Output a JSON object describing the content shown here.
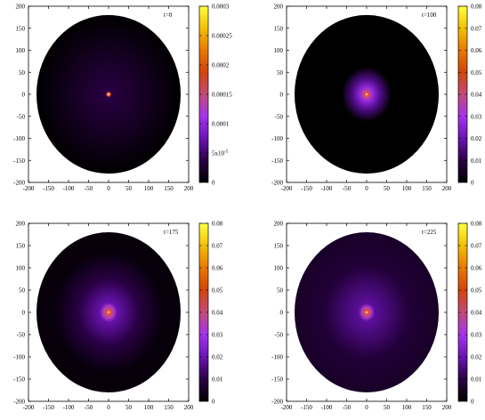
{
  "chart_data": [
    {
      "type": "heatmap",
      "annotation": "t=0",
      "xlim": [
        -200,
        200
      ],
      "ylim": [
        -200,
        200
      ],
      "x_ticks": [
        -200,
        -150,
        -100,
        -50,
        0,
        50,
        100,
        150,
        200
      ],
      "y_ticks": [
        -200,
        -150,
        -100,
        -50,
        0,
        50,
        100,
        150,
        200
      ],
      "domain": {
        "shape": "disk",
        "center": [
          0,
          0
        ],
        "radius": 180
      },
      "field": {
        "peak": [
          0,
          0
        ],
        "core_radius": 3,
        "halo_radius": 0,
        "halo_level": 0,
        "background_level": 0
      },
      "colorbar": {
        "range": [
          0,
          0.0003
        ],
        "ticks": [
          0,
          5e-05,
          0.0001,
          0.00015,
          0.0002,
          0.00025,
          0.0003
        ],
        "tick_labels": [
          "0",
          "5x10",
          "0.0001",
          "0.00015",
          "0.0002",
          "0.00025",
          "0.0003"
        ],
        "tick_exponents": [
          "",
          "-5",
          "",
          "",
          "",
          "",
          ""
        ]
      },
      "grid": false
    },
    {
      "type": "heatmap",
      "annotation": "t=100",
      "xlim": [
        -200,
        200
      ],
      "ylim": [
        -200,
        200
      ],
      "x_ticks": [
        -200,
        -150,
        -100,
        -50,
        0,
        50,
        100,
        150,
        200
      ],
      "y_ticks": [
        -200,
        -150,
        -100,
        -50,
        0,
        50,
        100,
        150,
        200
      ],
      "domain": {
        "shape": "disk",
        "center": [
          0,
          0
        ],
        "radius": 180
      },
      "field": {
        "peak": [
          0,
          0
        ],
        "core_radius": 18,
        "halo_radius": 62,
        "halo_level": 0.2,
        "background_level": 0
      },
      "colorbar": {
        "range": [
          0,
          0.08
        ],
        "ticks": [
          0,
          0.01,
          0.02,
          0.03,
          0.04,
          0.05,
          0.06,
          0.07,
          0.08
        ],
        "tick_labels": [
          "0",
          "0.01",
          "0.02",
          "0.03",
          "0.04",
          "0.05",
          "0.06",
          "0.07",
          "0.08"
        ],
        "tick_exponents": [
          "",
          "",
          "",
          "",
          "",
          "",
          "",
          "",
          ""
        ]
      },
      "grid": false
    },
    {
      "type": "heatmap",
      "annotation": "t=175",
      "xlim": [
        -200,
        200
      ],
      "ylim": [
        -200,
        200
      ],
      "x_ticks": [
        -200,
        -150,
        -100,
        -50,
        0,
        50,
        100,
        150,
        200
      ],
      "y_ticks": [
        -200,
        -150,
        -100,
        -50,
        0,
        50,
        100,
        150,
        200
      ],
      "domain": {
        "shape": "disk",
        "center": [
          0,
          0
        ],
        "radius": 180
      },
      "field": {
        "peak": [
          0,
          0
        ],
        "core_radius": 22,
        "halo_radius": 135,
        "halo_level": 0.12,
        "background_level": 0.02
      },
      "colorbar": {
        "range": [
          0,
          0.08
        ],
        "ticks": [
          0,
          0.01,
          0.02,
          0.03,
          0.04,
          0.05,
          0.06,
          0.07,
          0.08
        ],
        "tick_labels": [
          "0",
          "0.01",
          "0.02",
          "0.03",
          "0.04",
          "0.05",
          "0.06",
          "0.07",
          "0.08"
        ],
        "tick_exponents": [
          "",
          "",
          "",
          "",
          "",
          "",
          "",
          "",
          ""
        ]
      },
      "grid": false
    },
    {
      "type": "heatmap",
      "annotation": "t=225",
      "xlim": [
        -200,
        200
      ],
      "ylim": [
        -200,
        200
      ],
      "x_ticks": [
        -200,
        -150,
        -100,
        -50,
        0,
        50,
        100,
        150,
        200
      ],
      "y_ticks": [
        -200,
        -150,
        -100,
        -50,
        0,
        50,
        100,
        150,
        200
      ],
      "domain": {
        "shape": "disk",
        "center": [
          0,
          0
        ],
        "radius": 180
      },
      "field": {
        "peak": [
          0,
          0
        ],
        "core_radius": 20,
        "halo_radius": 190,
        "halo_level": 0.1,
        "background_level": 0.07
      },
      "colorbar": {
        "range": [
          0,
          0.08
        ],
        "ticks": [
          0,
          0.01,
          0.02,
          0.03,
          0.04,
          0.05,
          0.06,
          0.07,
          0.08
        ],
        "tick_labels": [
          "0",
          "0.01",
          "0.02",
          "0.03",
          "0.04",
          "0.05",
          "0.06",
          "0.07",
          "0.08"
        ],
        "tick_exponents": [
          "",
          "",
          "",
          "",
          "",
          "",
          "",
          "",
          ""
        ]
      },
      "grid": false
    }
  ],
  "colormap": [
    "#000000",
    "#2b0046",
    "#6a14b4",
    "#a433ee",
    "#c24a78",
    "#d2440c",
    "#e87800",
    "#f4c000",
    "#ffff40"
  ],
  "peak_color": "#ff5a1e"
}
